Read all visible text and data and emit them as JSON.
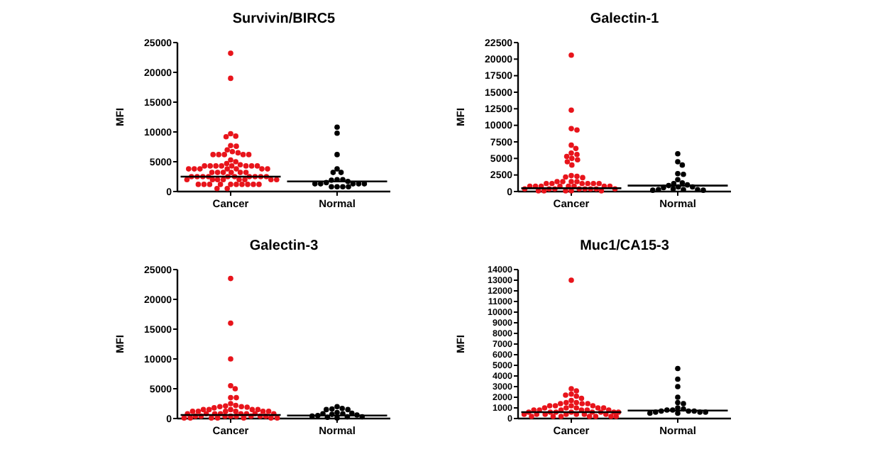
{
  "chart_data": [
    {
      "type": "scatter",
      "title": "Survivin/BIRC5",
      "ylabel": "MFI",
      "categories": [
        "Cancer",
        "Normal"
      ],
      "ylim": [
        0,
        25000
      ],
      "yticks": [
        0,
        5000,
        10000,
        15000,
        20000,
        25000
      ],
      "marker": "circle",
      "grid": false,
      "series": [
        {
          "type": "scatter",
          "color": "#e8141b",
          "x": [
            "Cancer",
            "Cancer",
            "Cancer",
            "Cancer",
            "Cancer",
            "Cancer",
            "Cancer",
            "Cancer",
            "Cancer",
            "Cancer",
            "Cancer",
            "Cancer",
            "Cancer",
            "Cancer",
            "Cancer",
            "Cancer",
            "Cancer",
            "Cancer",
            "Cancer",
            "Cancer",
            "Cancer",
            "Cancer",
            "Cancer",
            "Cancer",
            "Cancer",
            "Cancer",
            "Cancer",
            "Cancer",
            "Cancer",
            "Cancer",
            "Cancer",
            "Cancer",
            "Cancer",
            "Cancer",
            "Cancer",
            "Cancer",
            "Cancer",
            "Cancer",
            "Cancer",
            "Cancer",
            "Cancer",
            "Cancer",
            "Cancer",
            "Cancer",
            "Cancer",
            "Cancer",
            "Cancer",
            "Cancer",
            "Cancer",
            "Cancer",
            "Cancer",
            "Cancer",
            "Cancer",
            "Cancer",
            "Cancer",
            "Cancer",
            "Cancer",
            "Cancer",
            "Cancer",
            "Cancer",
            "Cancer",
            "Cancer",
            "Cancer",
            "Cancer",
            "Cancer",
            "Cancer",
            "Cancer",
            "Cancer",
            "Cancer",
            "Cancer"
          ],
          "values": [
            23200,
            19000,
            9700,
            9300,
            9200,
            7700,
            7600,
            7000,
            6700,
            6500,
            6200,
            6200,
            6200,
            6200,
            6200,
            5300,
            5000,
            4700,
            4500,
            4300,
            4300,
            4300,
            4300,
            4300,
            4300,
            4300,
            4300,
            3800,
            3800,
            3800,
            3800,
            3800,
            3800,
            3800,
            3200,
            3200,
            3200,
            3200,
            3200,
            3200,
            2500,
            2500,
            2500,
            2500,
            2500,
            2500,
            2500,
            2500,
            2500,
            2500,
            2000,
            2000,
            2000,
            2000,
            2000,
            2000,
            2000,
            2000,
            1200,
            1200,
            1200,
            1200,
            1200,
            1200,
            1200,
            1200,
            1200,
            1200,
            500,
            500
          ]
        },
        {
          "type": "scatter",
          "color": "#000000",
          "x": [
            "Normal",
            "Normal",
            "Normal",
            "Normal",
            "Normal",
            "Normal",
            "Normal",
            "Normal",
            "Normal",
            "Normal",
            "Normal",
            "Normal",
            "Normal",
            "Normal",
            "Normal",
            "Normal",
            "Normal",
            "Normal",
            "Normal",
            "Normal"
          ],
          "values": [
            10800,
            9800,
            6200,
            3800,
            3200,
            3200,
            2000,
            2000,
            1900,
            1700,
            1500,
            1300,
            1300,
            1300,
            1300,
            1300,
            800,
            800,
            800,
            800
          ]
        },
        {
          "type": "box",
          "color": "#000000",
          "boxes": [
            {
              "low": 2500,
              "q1": 2500,
              "median": 2500,
              "q3": 2500,
              "high": 2500
            },
            {
              "low": 1700,
              "q1": 1700,
              "median": 1700,
              "q3": 1700,
              "high": 1700
            }
          ]
        }
      ]
    },
    {
      "type": "scatter",
      "title": "Galectin-1",
      "ylabel": "MFI",
      "categories": [
        "Cancer",
        "Normal"
      ],
      "ylim": [
        0,
        22500
      ],
      "yticks": [
        0,
        2500,
        5000,
        7500,
        10000,
        12500,
        15000,
        17500,
        20000,
        22500
      ],
      "marker": "circle",
      "grid": false,
      "series": [
        {
          "type": "scatter",
          "color": "#e8141b",
          "x": [
            "Cancer",
            "Cancer",
            "Cancer",
            "Cancer",
            "Cancer",
            "Cancer",
            "Cancer",
            "Cancer",
            "Cancer",
            "Cancer",
            "Cancer",
            "Cancer",
            "Cancer",
            "Cancer",
            "Cancer",
            "Cancer",
            "Cancer",
            "Cancer",
            "Cancer",
            "Cancer",
            "Cancer",
            "Cancer",
            "Cancer",
            "Cancer",
            "Cancer",
            "Cancer",
            "Cancer",
            "Cancer",
            "Cancer",
            "Cancer",
            "Cancer",
            "Cancer",
            "Cancer",
            "Cancer",
            "Cancer",
            "Cancer",
            "Cancer",
            "Cancer",
            "Cancer",
            "Cancer",
            "Cancer",
            "Cancer",
            "Cancer",
            "Cancer",
            "Cancer",
            "Cancer",
            "Cancer",
            "Cancer"
          ],
          "values": [
            20600,
            12300,
            9500,
            9300,
            7000,
            6500,
            5800,
            5600,
            5300,
            5000,
            4800,
            4500,
            4000,
            2400,
            2300,
            2200,
            2100,
            1500,
            1500,
            1500,
            1500,
            1200,
            1200,
            1200,
            1200,
            1200,
            1200,
            800,
            800,
            800,
            800,
            800,
            800,
            800,
            800,
            400,
            400,
            400,
            400,
            400,
            400,
            400,
            400,
            100,
            100,
            100,
            100,
            100
          ]
        },
        {
          "type": "scatter",
          "color": "#000000",
          "x": [
            "Normal",
            "Normal",
            "Normal",
            "Normal",
            "Normal",
            "Normal",
            "Normal",
            "Normal",
            "Normal",
            "Normal",
            "Normal",
            "Normal",
            "Normal",
            "Normal",
            "Normal",
            "Normal",
            "Normal",
            "Normal",
            "Normal"
          ],
          "values": [
            5700,
            4500,
            4000,
            2700,
            2600,
            1800,
            1300,
            1200,
            1000,
            900,
            700,
            700,
            600,
            400,
            300,
            300,
            300,
            200,
            200
          ]
        },
        {
          "type": "box",
          "color": "#000000",
          "boxes": [
            {
              "low": 500,
              "q1": 500,
              "median": 500,
              "q3": 500,
              "high": 500
            },
            {
              "low": 900,
              "q1": 900,
              "median": 900,
              "q3": 900,
              "high": 900
            }
          ]
        }
      ]
    },
    {
      "type": "scatter",
      "title": "Galectin-3",
      "ylabel": "MFI",
      "categories": [
        "Cancer",
        "Normal"
      ],
      "ylim": [
        0,
        25000
      ],
      "yticks": [
        0,
        5000,
        10000,
        15000,
        20000,
        25000
      ],
      "marker": "circle",
      "grid": false,
      "series": [
        {
          "type": "scatter",
          "color": "#e8141b",
          "x": [
            "Cancer",
            "Cancer",
            "Cancer",
            "Cancer",
            "Cancer",
            "Cancer",
            "Cancer",
            "Cancer",
            "Cancer",
            "Cancer",
            "Cancer",
            "Cancer",
            "Cancer",
            "Cancer",
            "Cancer",
            "Cancer",
            "Cancer",
            "Cancer",
            "Cancer",
            "Cancer",
            "Cancer",
            "Cancer",
            "Cancer",
            "Cancer",
            "Cancer",
            "Cancer",
            "Cancer",
            "Cancer",
            "Cancer",
            "Cancer",
            "Cancer",
            "Cancer",
            "Cancer",
            "Cancer",
            "Cancer",
            "Cancer",
            "Cancer",
            "Cancer",
            "Cancer",
            "Cancer",
            "Cancer",
            "Cancer",
            "Cancer",
            "Cancer",
            "Cancer",
            "Cancer",
            "Cancer",
            "Cancer"
          ],
          "values": [
            23500,
            16000,
            10000,
            5500,
            5000,
            3500,
            3500,
            2500,
            2200,
            2100,
            2000,
            2000,
            1900,
            1800,
            1500,
            1500,
            1500,
            1500,
            1500,
            1200,
            1200,
            1200,
            1200,
            1200,
            1200,
            800,
            800,
            800,
            800,
            800,
            800,
            800,
            800,
            400,
            400,
            400,
            400,
            400,
            400,
            400,
            400,
            100,
            100,
            100,
            100,
            100,
            100,
            100
          ]
        },
        {
          "type": "scatter",
          "color": "#000000",
          "x": [
            "Normal",
            "Normal",
            "Normal",
            "Normal",
            "Normal",
            "Normal",
            "Normal",
            "Normal",
            "Normal",
            "Normal",
            "Normal",
            "Normal",
            "Normal",
            "Normal",
            "Normal",
            "Normal",
            "Normal"
          ],
          "values": [
            2000,
            1700,
            1600,
            1500,
            1500,
            1000,
            900,
            800,
            800,
            700,
            600,
            500,
            400,
            300,
            300,
            200,
            100
          ]
        },
        {
          "type": "box",
          "color": "#000000",
          "boxes": [
            {
              "low": 600,
              "q1": 600,
              "median": 600,
              "q3": 600,
              "high": 600
            },
            {
              "low": 500,
              "q1": 500,
              "median": 500,
              "q3": 500,
              "high": 500
            }
          ]
        }
      ]
    },
    {
      "type": "scatter",
      "title": "Muc1/CA15-3",
      "ylabel": "MFI",
      "categories": [
        "Cancer",
        "Normal"
      ],
      "ylim": [
        0,
        14000
      ],
      "yticks": [
        0,
        1000,
        2000,
        3000,
        4000,
        5000,
        6000,
        7000,
        8000,
        9000,
        10000,
        11000,
        12000,
        13000,
        14000
      ],
      "marker": "circle",
      "grid": false,
      "series": [
        {
          "type": "scatter",
          "color": "#e8141b",
          "x": [
            "Cancer",
            "Cancer",
            "Cancer",
            "Cancer",
            "Cancer",
            "Cancer",
            "Cancer",
            "Cancer",
            "Cancer",
            "Cancer",
            "Cancer",
            "Cancer",
            "Cancer",
            "Cancer",
            "Cancer",
            "Cancer",
            "Cancer",
            "Cancer",
            "Cancer",
            "Cancer",
            "Cancer",
            "Cancer",
            "Cancer",
            "Cancer",
            "Cancer",
            "Cancer",
            "Cancer",
            "Cancer",
            "Cancer",
            "Cancer",
            "Cancer",
            "Cancer",
            "Cancer",
            "Cancer",
            "Cancer",
            "Cancer",
            "Cancer",
            "Cancer",
            "Cancer",
            "Cancer",
            "Cancer",
            "Cancer",
            "Cancer",
            "Cancer",
            "Cancer",
            "Cancer",
            "Cancer",
            "Cancer",
            "Cancer",
            "Cancer"
          ],
          "values": [
            13000,
            2800,
            2600,
            2300,
            2200,
            2100,
            1900,
            1700,
            1500,
            1500,
            1400,
            1400,
            1400,
            1200,
            1200,
            1200,
            1200,
            1000,
            1000,
            1000,
            1000,
            1000,
            800,
            800,
            800,
            800,
            800,
            800,
            600,
            600,
            600,
            600,
            600,
            600,
            600,
            600,
            400,
            400,
            400,
            400,
            400,
            400,
            400,
            200,
            200,
            200,
            200,
            200,
            200,
            200
          ]
        },
        {
          "type": "scatter",
          "color": "#000000",
          "x": [
            "Normal",
            "Normal",
            "Normal",
            "Normal",
            "Normal",
            "Normal",
            "Normal",
            "Normal",
            "Normal",
            "Normal",
            "Normal",
            "Normal",
            "Normal",
            "Normal",
            "Normal",
            "Normal",
            "Normal",
            "Normal"
          ],
          "values": [
            4700,
            3700,
            3000,
            2000,
            1500,
            1400,
            1000,
            900,
            800,
            800,
            700,
            700,
            700,
            600,
            600,
            600,
            500,
            500
          ]
        },
        {
          "type": "box",
          "color": "#000000",
          "boxes": [
            {
              "low": 600,
              "q1": 600,
              "median": 600,
              "q3": 600,
              "high": 600
            },
            {
              "low": 750,
              "q1": 750,
              "median": 750,
              "q3": 750,
              "high": 750
            }
          ]
        }
      ]
    }
  ]
}
